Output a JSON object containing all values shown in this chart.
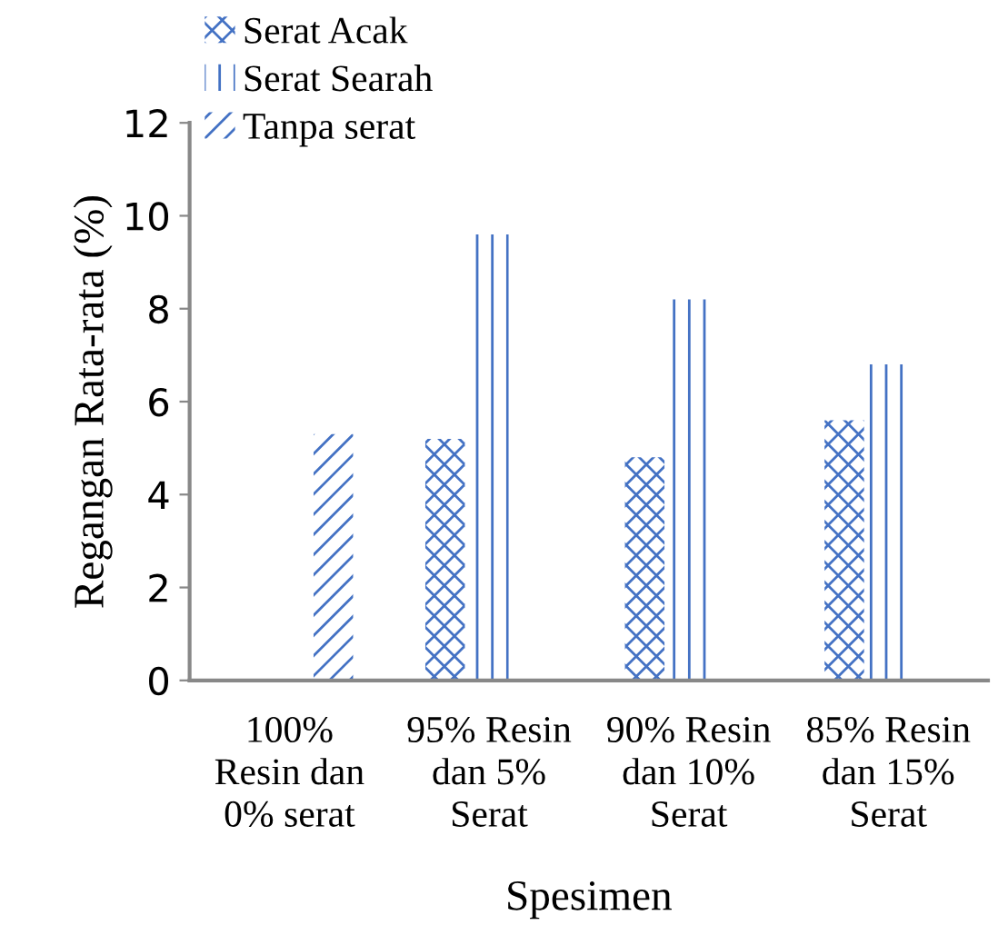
{
  "chart_data": {
    "type": "bar",
    "xlabel": "Spesimen",
    "ylabel": "Regangan Rata-rata (%)",
    "categories": [
      "100%\nResin dan\n0% serat",
      "95% Resin\ndan 5%\nSerat",
      "90% Resin\ndan 10%\nSerat",
      "85% Resin\ndan 15%\nSerat"
    ],
    "series": [
      {
        "name": "Serat Acak",
        "color": "#4472c4",
        "values": [
          null,
          5.2,
          4.8,
          5.6
        ]
      },
      {
        "name": "Serat Searah",
        "color": "#4472c4",
        "values": [
          null,
          9.6,
          8.2,
          6.8
        ]
      },
      {
        "name": "Tanpa serat",
        "color": "#4472c4",
        "values": [
          5.3,
          null,
          null,
          null
        ]
      }
    ],
    "ylim": [
      0,
      12
    ],
    "yticks": [
      0,
      2,
      4,
      6,
      8,
      10,
      12
    ],
    "grid": false,
    "legend": "top left"
  }
}
